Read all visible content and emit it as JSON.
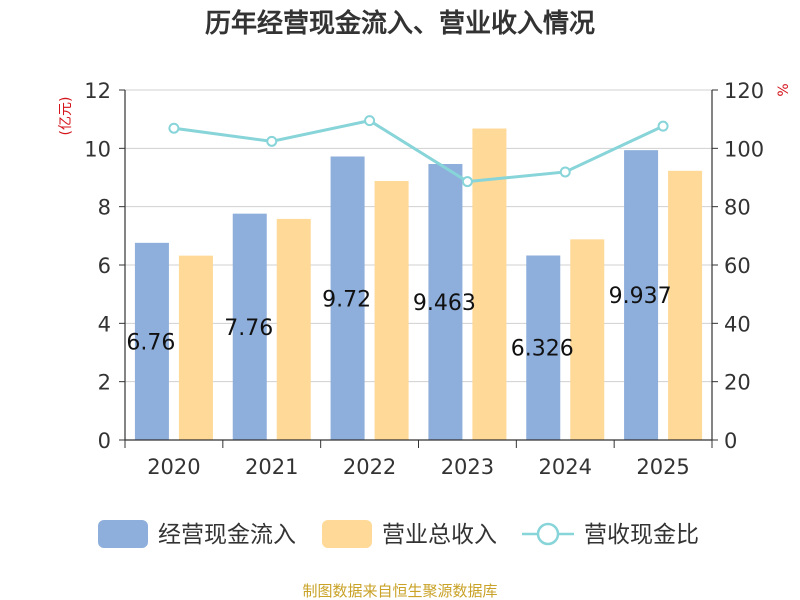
{
  "chart_data": {
    "type": "bar",
    "title": "历年经营现金流入、营业收入情况",
    "categories": [
      "2020",
      "2021",
      "2022",
      "2023",
      "2024",
      "2025"
    ],
    "y_left": {
      "unit_label": "(亿元)",
      "ylim": [
        0,
        12
      ],
      "ticks": [
        0,
        2,
        4,
        6,
        8,
        10,
        12
      ]
    },
    "y_right": {
      "unit_label": "%",
      "ylim": [
        0,
        120
      ],
      "ticks": [
        0,
        20,
        40,
        60,
        80,
        100,
        120
      ]
    },
    "series": [
      {
        "name": "经营现金流入",
        "kind": "bar",
        "axis": "left",
        "color": "#8eaedb",
        "values": [
          6.76,
          7.76,
          9.72,
          9.463,
          6.326,
          9.937
        ],
        "labels": [
          "6.76",
          "7.76",
          "9.72",
          "9.463",
          "6.326",
          "9.937"
        ]
      },
      {
        "name": "营业总收入",
        "kind": "bar",
        "axis": "left",
        "color": "#fed998",
        "values": [
          6.32,
          7.58,
          8.88,
          10.68,
          6.88,
          9.23
        ]
      },
      {
        "name": "营收现金比",
        "kind": "line",
        "axis": "right",
        "color": "#87d4d9",
        "values": [
          106.9,
          102.4,
          109.5,
          88.6,
          91.9,
          107.6
        ]
      }
    ],
    "grid": true,
    "legend_position": "bottom"
  },
  "footer": "制图数据来自恒生聚源数据库"
}
